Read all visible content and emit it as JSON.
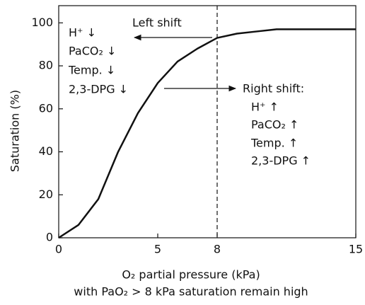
{
  "chart_data": {
    "type": "line",
    "x_label": "O₂ partial pressure (kPa)",
    "subtitle": "with PaO₂ > 8 kPa saturation remain high",
    "y_label": "Saturation (%)",
    "x": [
      0,
      1,
      2,
      3,
      4,
      5,
      6,
      7,
      8,
      9,
      10,
      11,
      12,
      13,
      14,
      15
    ],
    "series": [
      {
        "color": "#111111",
        "values": [
          0,
          6,
          18,
          40,
          58,
          72,
          82,
          88,
          93,
          95,
          96,
          97,
          97,
          97,
          97,
          97
        ]
      }
    ],
    "xlim": [
      0,
      15
    ],
    "xticks": [
      0,
      5,
      8,
      15
    ],
    "ylim": [
      0,
      108
    ],
    "yticks": [
      0,
      20,
      40,
      60,
      80,
      100
    ],
    "vline": 8,
    "annotations": {
      "left_label": "Left shift",
      "left": [
        "H⁺ ↓",
        "PaCO₂ ↓",
        "Temp. ↓",
        "2,3-DPG ↓"
      ],
      "right_label": "Right shift:",
      "right": [
        "H⁺ ↑",
        "PaCO₂ ↑",
        "Temp. ↑",
        "2,3-DPG ↑"
      ]
    }
  }
}
